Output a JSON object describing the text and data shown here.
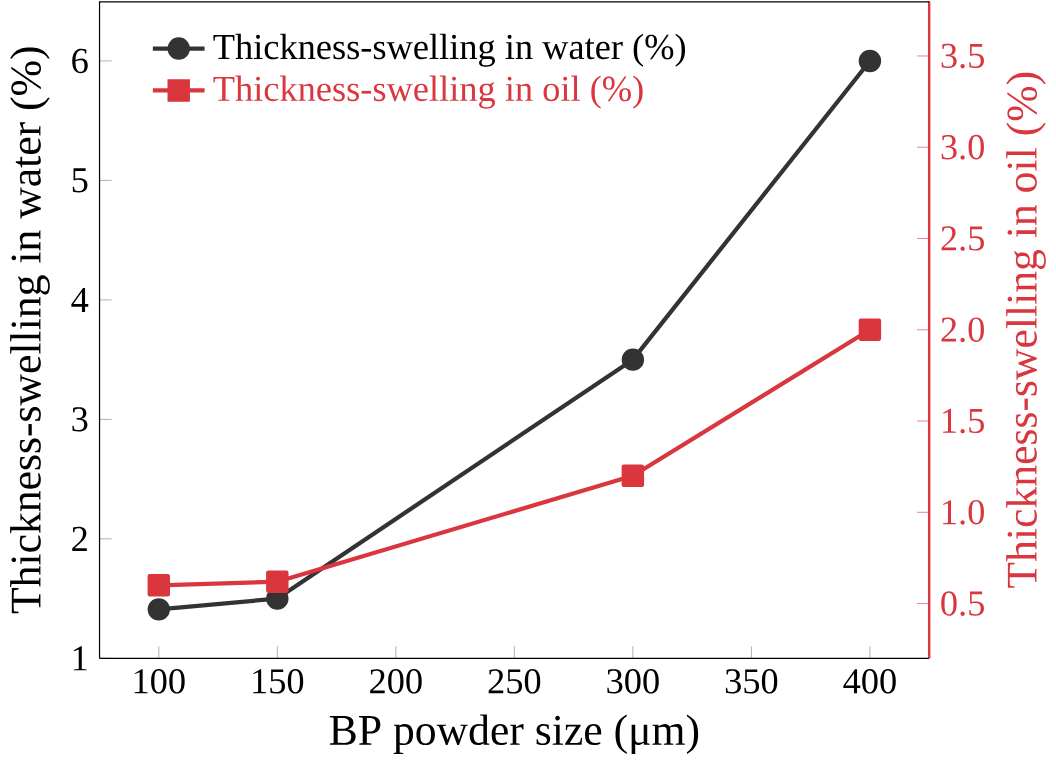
{
  "chart_data": {
    "type": "line",
    "xlabel": "BP powder size (μm)",
    "ylabel": "Thickness-swelling in water (%)",
    "y2label": "Thickness-swelling in oil (%)",
    "x": [
      100,
      150,
      300,
      400
    ],
    "series": [
      {
        "name": "Thickness-swelling in water (%)",
        "color": "#333333",
        "marker": "circle",
        "values": [
          1.41,
          1.5,
          3.5,
          6.0
        ]
      },
      {
        "name": "Thickness-swelling in oil (%)",
        "color": "#d9363e",
        "marker": "square",
        "axis": "y2",
        "values": [
          0.6,
          0.62,
          1.2,
          2.0
        ]
      }
    ],
    "xlim": [
      75,
      425
    ],
    "xticks": [
      100,
      150,
      200,
      250,
      300,
      350,
      400
    ],
    "ylim": [
      1,
      6.5
    ],
    "yticks": [
      1,
      2,
      3,
      4,
      5,
      6
    ],
    "y2lim": [
      0.2,
      3.8
    ],
    "y2ticks": [
      {
        "value": 0.5,
        "label": "0.5"
      },
      {
        "value": 1.0,
        "label": "1.0"
      },
      {
        "value": 1.5,
        "label": "1.5"
      },
      {
        "value": 2.0,
        "label": "2.0"
      },
      {
        "value": 2.5,
        "label": "2.5"
      },
      {
        "value": 3.0,
        "label": "3.0"
      },
      {
        "value": 3.5,
        "label": "3.5"
      }
    ],
    "legend": "top left",
    "grid": false,
    "line_style": "solid"
  }
}
